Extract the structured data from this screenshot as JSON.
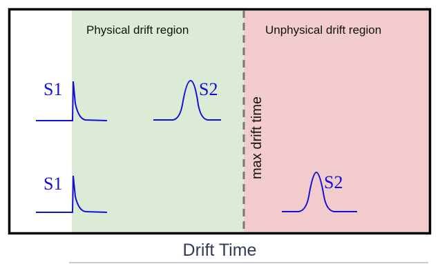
{
  "regions": {
    "physical_label": "Physical drift region",
    "unphysical_label": "Unphysical drift region"
  },
  "divider": {
    "label": "max drift time"
  },
  "pulses": {
    "s1_label": "S1",
    "s2_label": "S2"
  },
  "axis": {
    "title": "Drift Time"
  },
  "colors": {
    "physical_region": "#dcebd5",
    "unphysical_region": "#f2cccc",
    "pulse": "#1010d8",
    "frame": "#000000",
    "divider": "#777777"
  }
}
